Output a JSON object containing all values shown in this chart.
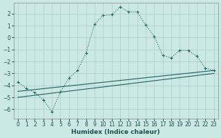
{
  "xlabel": "Humidex (Indice chaleur)",
  "background_color": "#cce8e5",
  "grid_color": "#aaccca",
  "line_color": "#1a6060",
  "xlim": [
    -0.5,
    23.5
  ],
  "ylim": [
    -6.8,
    2.9
  ],
  "yticks": [
    -6,
    -5,
    -4,
    -3,
    -2,
    -1,
    0,
    1,
    2
  ],
  "xticks": [
    0,
    1,
    2,
    3,
    4,
    5,
    6,
    7,
    8,
    9,
    10,
    11,
    12,
    13,
    14,
    15,
    16,
    17,
    18,
    19,
    20,
    21,
    22,
    23
  ],
  "curve1_x": [
    0,
    1,
    2,
    3,
    4,
    5,
    6,
    7,
    8,
    9,
    10,
    11,
    12,
    13,
    14,
    15,
    16,
    17,
    18,
    19,
    20,
    21,
    22,
    23
  ],
  "curve1_y": [
    -3.7,
    -4.25,
    -4.6,
    -5.2,
    -6.2,
    -4.55,
    -3.4,
    -2.75,
    -1.3,
    1.1,
    1.85,
    1.9,
    2.55,
    2.15,
    2.15,
    1.05,
    0.1,
    -1.5,
    -1.7,
    -1.05,
    -1.1,
    -1.55,
    -2.55,
    -2.75
  ],
  "line2_x": [
    0,
    23
  ],
  "line2_y": [
    -4.5,
    -2.75
  ],
  "line3_x": [
    0,
    23
  ],
  "line3_y": [
    -5.0,
    -3.0
  ]
}
